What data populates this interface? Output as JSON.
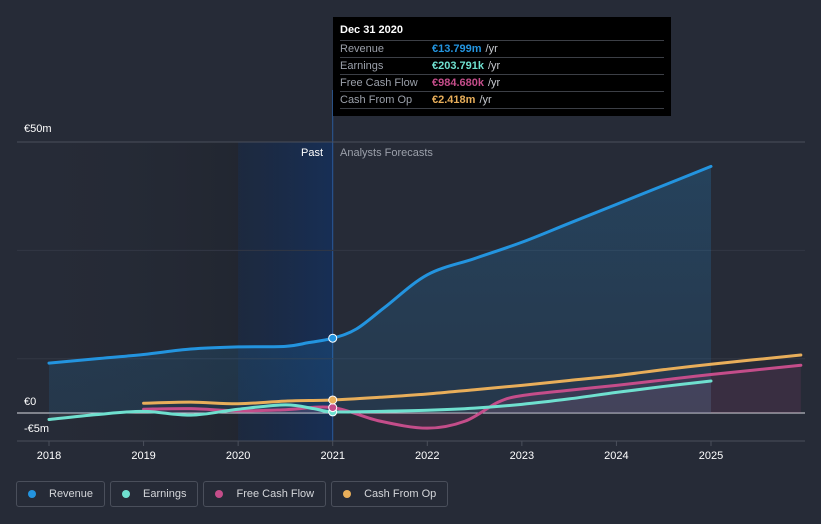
{
  "chart_data": {
    "type": "line",
    "title": "",
    "xlabel": "",
    "ylabel": "",
    "currency": "€",
    "y_ticks": [
      {
        "label": "€50m",
        "value": 50
      },
      {
        "label": "€0",
        "value": 0
      },
      {
        "label": "-€5m",
        "value": -5
      }
    ],
    "ylim": [
      -5,
      50
    ],
    "x_ticks": [
      "2018",
      "2019",
      "2020",
      "2021",
      "2022",
      "2023",
      "2024",
      "2025"
    ],
    "xlim": [
      2017.8,
      2025.95
    ],
    "divider_x": 2021.0,
    "region_labels": {
      "past": "Past",
      "forecast": "Analysts Forecasts"
    },
    "grid": true,
    "legend_position": "bottom-left",
    "series": [
      {
        "name": "Revenue",
        "color": "#2394df",
        "points": [
          [
            2018.0,
            9.2
          ],
          [
            2018.5,
            10.0
          ],
          [
            2019.0,
            10.8
          ],
          [
            2019.5,
            11.8
          ],
          [
            2020.0,
            12.2
          ],
          [
            2020.5,
            12.3
          ],
          [
            2020.75,
            13.0
          ],
          [
            2021.0,
            13.8
          ],
          [
            2021.25,
            15.5
          ],
          [
            2021.55,
            19.5
          ],
          [
            2022.0,
            25.5
          ],
          [
            2022.5,
            28.5
          ],
          [
            2023.0,
            31.5
          ],
          [
            2023.5,
            35.0
          ],
          [
            2024.0,
            38.5
          ],
          [
            2024.5,
            42.0
          ],
          [
            2025.0,
            45.5
          ]
        ],
        "highlight_x": 2021.0
      },
      {
        "name": "Earnings",
        "color": "#6fe0cf",
        "points": [
          [
            2018.0,
            -1.2
          ],
          [
            2018.5,
            -0.3
          ],
          [
            2019.0,
            0.3
          ],
          [
            2019.5,
            -0.4
          ],
          [
            2020.0,
            0.7
          ],
          [
            2020.5,
            1.5
          ],
          [
            2020.8,
            0.8
          ],
          [
            2021.0,
            0.2
          ],
          [
            2021.5,
            0.3
          ],
          [
            2022.0,
            0.5
          ],
          [
            2022.5,
            0.9
          ],
          [
            2023.0,
            1.6
          ],
          [
            2023.5,
            2.6
          ],
          [
            2024.0,
            3.8
          ],
          [
            2024.5,
            4.9
          ],
          [
            2025.0,
            5.9
          ]
        ],
        "highlight_x": 2021.0
      },
      {
        "name": "Free Cash Flow",
        "color": "#c44d8a",
        "points": [
          [
            2019.0,
            0.7
          ],
          [
            2019.5,
            0.8
          ],
          [
            2020.0,
            0.4
          ],
          [
            2020.5,
            0.6
          ],
          [
            2021.0,
            1.0
          ],
          [
            2021.5,
            -1.5
          ],
          [
            2022.0,
            -2.8
          ],
          [
            2022.4,
            -1.5
          ],
          [
            2022.75,
            2.0
          ],
          [
            2023.0,
            3.2
          ],
          [
            2023.5,
            4.2
          ],
          [
            2024.0,
            5.1
          ],
          [
            2024.5,
            6.1
          ],
          [
            2025.0,
            7.1
          ],
          [
            2025.95,
            8.8
          ]
        ],
        "highlight_x": 2021.0
      },
      {
        "name": "Cash From Op",
        "color": "#e8ae5a",
        "points": [
          [
            2019.0,
            1.8
          ],
          [
            2019.5,
            2.0
          ],
          [
            2020.0,
            1.7
          ],
          [
            2020.5,
            2.2
          ],
          [
            2021.0,
            2.4
          ],
          [
            2021.5,
            2.9
          ],
          [
            2022.0,
            3.5
          ],
          [
            2022.5,
            4.3
          ],
          [
            2023.0,
            5.1
          ],
          [
            2023.5,
            6.0
          ],
          [
            2024.0,
            6.9
          ],
          [
            2024.5,
            8.0
          ],
          [
            2025.0,
            9.0
          ],
          [
            2025.95,
            10.7
          ]
        ],
        "highlight_x": 2021.0
      }
    ]
  },
  "tooltip": {
    "date": "Dec 31 2020",
    "rows": [
      {
        "name": "Revenue",
        "value": "€13.799m",
        "unit": "/yr",
        "color": "#2394df"
      },
      {
        "name": "Earnings",
        "value": "€203.791k",
        "unit": "/yr",
        "color": "#6fe0cf"
      },
      {
        "name": "Free Cash Flow",
        "value": "€984.680k",
        "unit": "/yr",
        "color": "#c44d8a"
      },
      {
        "name": "Cash From Op",
        "value": "€2.418m",
        "unit": "/yr",
        "color": "#e8ae5a"
      }
    ]
  },
  "legend": [
    {
      "label": "Revenue",
      "color": "#2394df"
    },
    {
      "label": "Earnings",
      "color": "#6fe0cf"
    },
    {
      "label": "Free Cash Flow",
      "color": "#c44d8a"
    },
    {
      "label": "Cash From Op",
      "color": "#e8ae5a"
    }
  ]
}
